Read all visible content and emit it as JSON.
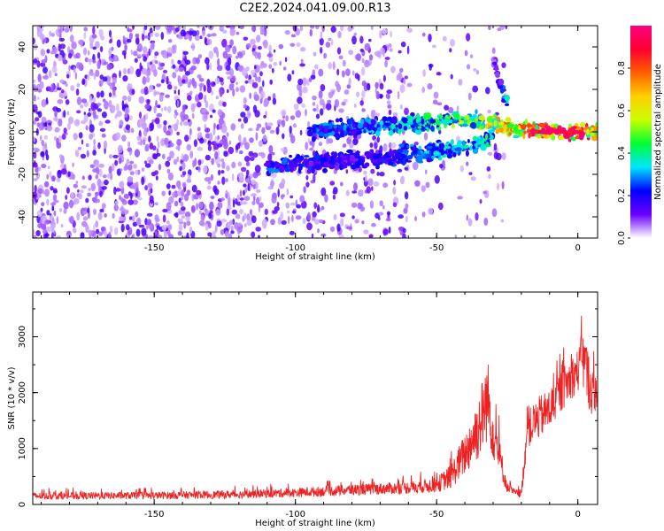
{
  "title": "C2E2.2024.041.09.00.R13",
  "chart_data": [
    {
      "type": "heatmap",
      "xlabel": "Height of straight line (km)",
      "ylabel": "Frequency (Hz)",
      "xlim": [
        -193,
        7
      ],
      "ylim": [
        -50,
        50
      ],
      "x_ticks": [
        -150,
        -100,
        -50,
        0
      ],
      "y_ticks": [
        -40,
        -20,
        0,
        20,
        40
      ],
      "colorbar": {
        "label": "Normalized spectral amplitude",
        "range": [
          0,
          1
        ],
        "ticks": [
          "0.0",
          "0.2",
          "0.4",
          "0.6",
          "0.8"
        ],
        "colors": [
          "#ffffff",
          "#6a00ff",
          "#0000ff",
          "#00e5ff",
          "#00ff33",
          "#c8ff00",
          "#ffd000",
          "#ff6000",
          "#ff0030",
          "#ff0080"
        ]
      },
      "features": [
        {
          "name": "noise",
          "x_range": [
            -193,
            -50
          ],
          "y_range": [
            -50,
            50
          ],
          "amplitude": 0.08
        },
        {
          "name": "upper-branch",
          "x": [
            -95,
            -70,
            -50,
            -35,
            -25,
            -15,
            0,
            7
          ],
          "y": [
            0,
            3,
            5,
            5,
            2,
            1,
            0,
            0
          ],
          "amplitude": [
            0.25,
            0.3,
            0.4,
            0.55,
            0.7,
            0.85,
            0.95,
            0.7
          ]
        },
        {
          "name": "lower-branch",
          "x": [
            -110,
            -90,
            -70,
            -55,
            -40,
            -30
          ],
          "y": [
            -16,
            -14,
            -12,
            -10,
            -7,
            -3
          ],
          "amplitude": [
            0.25,
            0.2,
            0.2,
            0.3,
            0.35,
            0.4
          ]
        },
        {
          "name": "spike",
          "x": [
            -30,
            -27,
            -25
          ],
          "y": [
            35,
            20,
            13
          ],
          "amplitude": [
            0.1,
            0.2,
            0.35
          ]
        }
      ]
    },
    {
      "type": "line",
      "xlabel": "Height of straight line (km)",
      "ylabel": "SNR (10 * v/v)",
      "xlim": [
        -193,
        7
      ],
      "ylim": [
        0,
        3800
      ],
      "x_ticks": [
        -150,
        -100,
        -50,
        0
      ],
      "y_ticks": [
        0,
        1000,
        2000,
        3000
      ],
      "color": "#ee2222",
      "envelope": {
        "x": [
          -193,
          -150,
          -120,
          -100,
          -80,
          -60,
          -50,
          -45,
          -40,
          -35,
          -32,
          -30,
          -27,
          -25,
          -22,
          -20,
          -18,
          -15,
          -10,
          -5,
          0,
          2,
          5,
          7
        ],
        "mean": [
          150,
          160,
          180,
          210,
          260,
          300,
          350,
          500,
          900,
          1400,
          1900,
          1300,
          700,
          300,
          200,
          200,
          1300,
          1500,
          1700,
          2100,
          2400,
          2600,
          2000,
          2000
        ],
        "amp": [
          120,
          120,
          130,
          150,
          180,
          200,
          250,
          400,
          700,
          1100,
          1400,
          900,
          500,
          150,
          120,
          150,
          600,
          700,
          700,
          700,
          700,
          1100,
          800,
          500
        ]
      }
    }
  ]
}
